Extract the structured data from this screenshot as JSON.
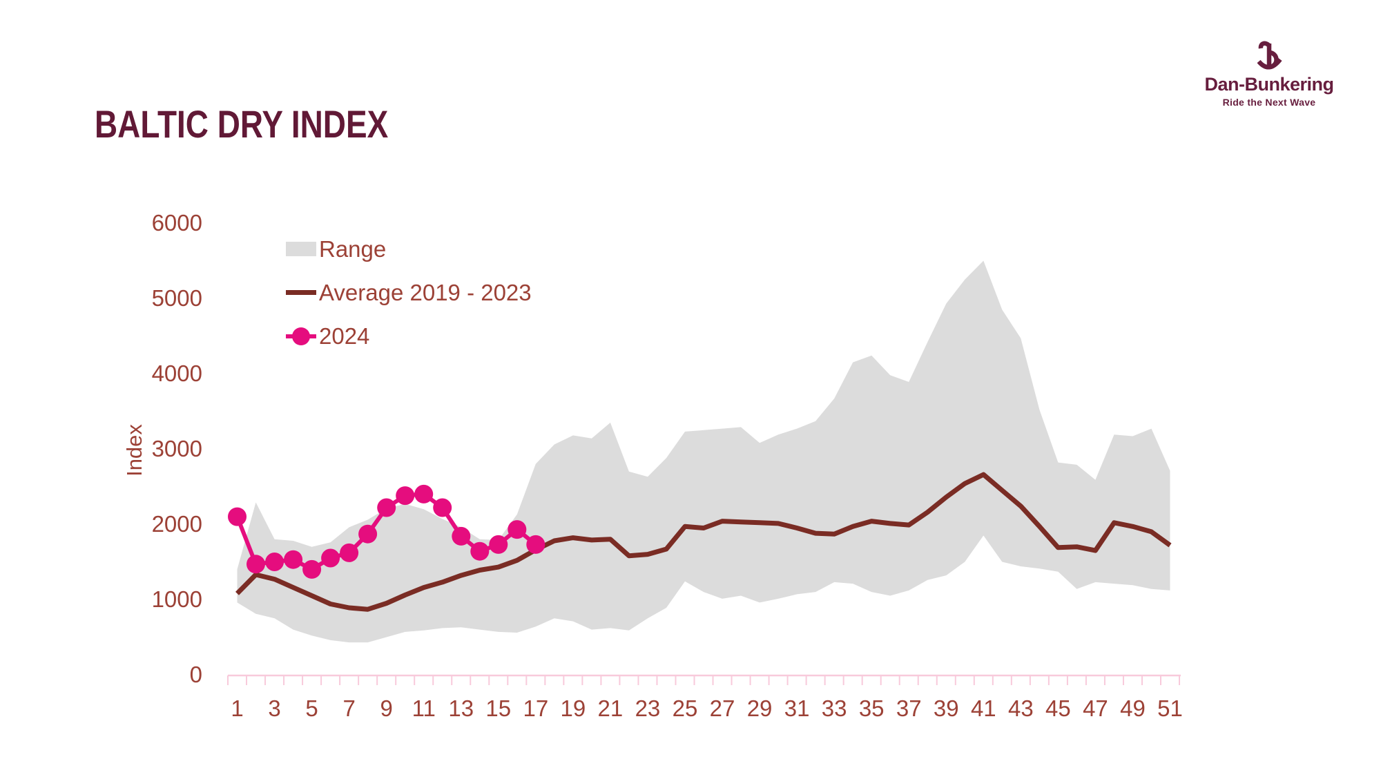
{
  "page": {
    "title": "BALTIC DRY INDEX"
  },
  "logo": {
    "name": "Dan-Bunkering",
    "tagline": "Ride the Next Wave",
    "icon": "anchor-b-icon",
    "color": "#671e3e"
  },
  "legend": {
    "items": [
      {
        "label": "Range",
        "swatch": "gray-area"
      },
      {
        "label": "Average 2019 - 2023",
        "swatch": "dark-red-line"
      },
      {
        "label": "2024",
        "swatch": "pink-line-dot"
      }
    ]
  },
  "colors": {
    "title": "#611936",
    "axis_text": "#9c4136",
    "axis_line": "#f8cadb",
    "range_fill": "#dcdcdc",
    "average_line": "#7a2c24",
    "line_2024": "#e50d7e",
    "background": "#ffffff"
  },
  "chart_data": {
    "type": "line",
    "title": "BALTIC DRY INDEX",
    "xlabel": "",
    "ylabel": "Index",
    "ylim": [
      0,
      6000
    ],
    "yticks": [
      0,
      1000,
      2000,
      3000,
      4000,
      5000,
      6000
    ],
    "xticks": [
      1,
      3,
      5,
      7,
      9,
      11,
      13,
      15,
      17,
      19,
      21,
      23,
      25,
      27,
      29,
      31,
      33,
      35,
      37,
      39,
      41,
      43,
      45,
      47,
      49,
      51
    ],
    "weeks": [
      1,
      2,
      3,
      4,
      5,
      6,
      7,
      8,
      9,
      10,
      11,
      12,
      13,
      14,
      15,
      16,
      17,
      18,
      19,
      20,
      21,
      22,
      23,
      24,
      25,
      26,
      27,
      28,
      29,
      30,
      31,
      32,
      33,
      34,
      35,
      36,
      37,
      38,
      39,
      40,
      41,
      42,
      43,
      44,
      45,
      46,
      47,
      48,
      49,
      50,
      51
    ],
    "grid": false,
    "legend_position": "top-left",
    "series": [
      {
        "name": "Range",
        "type": "band",
        "upper": [
          1400,
          2290,
          1800,
          1780,
          1700,
          1760,
          1960,
          2060,
          2210,
          2270,
          2200,
          2070,
          1960,
          1800,
          1790,
          2130,
          2800,
          3060,
          3180,
          3140,
          3350,
          2700,
          2630,
          2880,
          3230,
          3250,
          3270,
          3290,
          3080,
          3190,
          3270,
          3370,
          3670,
          4150,
          4240,
          3980,
          3890,
          4420,
          4930,
          5250,
          5500,
          4850,
          4470,
          3520,
          2820,
          2790,
          2590,
          3190,
          3170,
          3270,
          2710
        ],
        "lower": [
          960,
          810,
          750,
          600,
          520,
          460,
          430,
          430,
          500,
          570,
          590,
          620,
          630,
          600,
          570,
          560,
          640,
          750,
          710,
          600,
          620,
          590,
          750,
          890,
          1240,
          1100,
          1010,
          1050,
          960,
          1010,
          1070,
          1100,
          1230,
          1210,
          1100,
          1050,
          1120,
          1260,
          1320,
          1500,
          1850,
          1500,
          1440,
          1410,
          1370,
          1140,
          1230,
          1210,
          1190,
          1140,
          1120
        ]
      },
      {
        "name": "Average 2019 - 2023",
        "type": "line",
        "values": [
          1080,
          1330,
          1270,
          1160,
          1050,
          940,
          890,
          870,
          950,
          1060,
          1160,
          1230,
          1320,
          1390,
          1430,
          1520,
          1660,
          1780,
          1820,
          1790,
          1800,
          1580,
          1600,
          1670,
          1970,
          1950,
          2040,
          2030,
          2020,
          2010,
          1950,
          1880,
          1870,
          1970,
          2040,
          2010,
          1990,
          2160,
          2360,
          2540,
          2660,
          2450,
          2240,
          1970,
          1690,
          1700,
          1650,
          2020,
          1970,
          1900,
          1720
        ]
      },
      {
        "name": "2024",
        "type": "line+markers",
        "values": [
          2100,
          1470,
          1500,
          1530,
          1400,
          1550,
          1620,
          1870,
          2220,
          2380,
          2400,
          2220,
          1840,
          1640,
          1730,
          1930,
          1730
        ]
      }
    ]
  }
}
